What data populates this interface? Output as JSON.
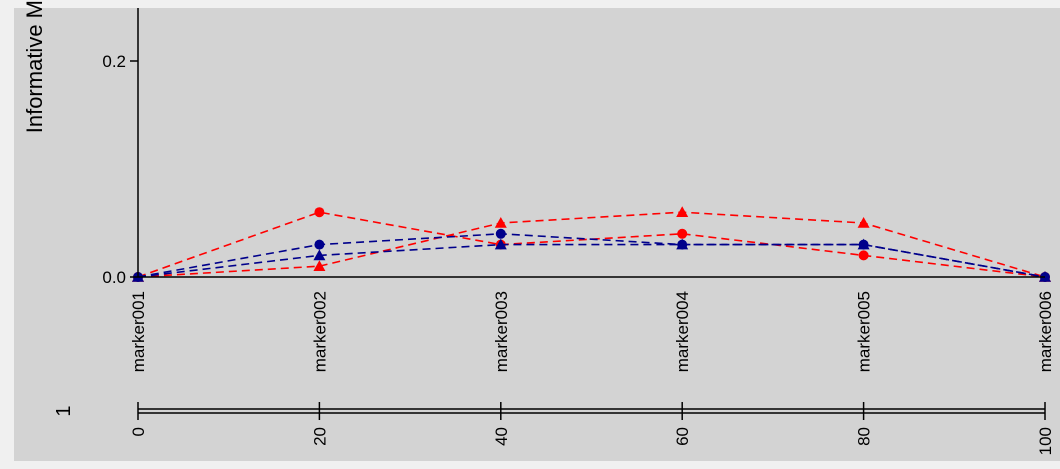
{
  "chart_data": {
    "type": "line",
    "ylabel": "Informative M",
    "yticks": [
      0.0,
      0.2
    ],
    "ytick_labels": [
      "0.0",
      "0.2"
    ],
    "ylim": [
      0,
      0.25
    ],
    "markers": [
      "marker001",
      "marker002",
      "marker003",
      "marker004",
      "marker005",
      "marker006"
    ],
    "positions": [
      0,
      20,
      40,
      60,
      80,
      100
    ],
    "chromosome_label": "1",
    "xticks": [
      0,
      20,
      40,
      60,
      80,
      100
    ],
    "xtick_labels": [
      "0",
      "20",
      "40",
      "60",
      "80",
      "100"
    ],
    "xlim": [
      0,
      100
    ],
    "series": [
      {
        "color": "#ff0000",
        "marker": "circle",
        "values": [
          0.0,
          0.06,
          0.03,
          0.04,
          0.02,
          0.0
        ]
      },
      {
        "color": "#ff0000",
        "marker": "triangle",
        "values": [
          0.0,
          0.01,
          0.05,
          0.06,
          0.05,
          0.0
        ]
      },
      {
        "color": "#00008b",
        "marker": "circle",
        "values": [
          0.0,
          0.03,
          0.04,
          0.03,
          0.03,
          0.0
        ]
      },
      {
        "color": "#00008b",
        "marker": "triangle",
        "values": [
          0.0,
          0.02,
          0.03,
          0.03,
          0.03,
          0.0
        ]
      }
    ],
    "colors": {
      "panel": "#d3d3d3",
      "background": "#f0f0f0"
    }
  }
}
